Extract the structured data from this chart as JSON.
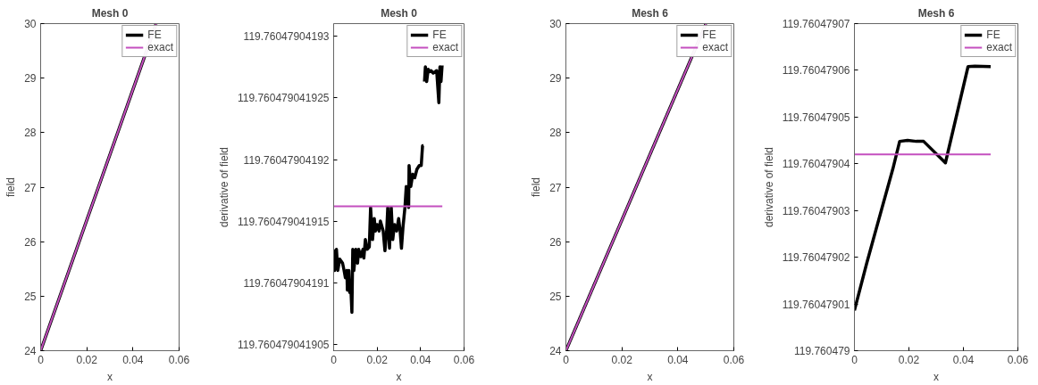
{
  "chart_data": [
    {
      "type": "line",
      "title": "Mesh 0",
      "xlabel": "x",
      "ylabel": "field",
      "xlim": [
        0,
        0.06
      ],
      "xticks": [
        0,
        0.02,
        0.04,
        0.06
      ],
      "ylim": [
        24,
        30
      ],
      "yticks": [
        24,
        25,
        26,
        27,
        28,
        29,
        30
      ],
      "grid": false,
      "legend": "top right",
      "series": [
        {
          "name": "FE",
          "color": "#000000",
          "x": [
            0,
            0.05
          ],
          "values": [
            24,
            29.99
          ]
        },
        {
          "name": "exact",
          "color": "#c44fbf",
          "x": [
            0,
            0.05
          ],
          "values": [
            24,
            29.99
          ]
        }
      ]
    },
    {
      "type": "line",
      "title": "Mesh 0",
      "xlabel": "x",
      "ylabel": "derivative of field",
      "xlim": [
        0,
        0.06
      ],
      "xticks": [
        0,
        0.02,
        0.04,
        0.06
      ],
      "ylim": [
        119.7604790419045,
        119.760479041931
      ],
      "yticks": [
        119.760479041905,
        119.76047904191,
        119.760479041915,
        119.76047904192,
        119.760479041925,
        119.76047904193
      ],
      "grid": false,
      "legend": "top right",
      "series": [
        {
          "name": "FE",
          "color": "#000000",
          "x": [
            0,
            0.0004,
            0.0013,
            0.0019,
            0.0028,
            0.0041,
            0.0048,
            0.0054,
            0.0061,
            0.0063,
            0.007,
            0.0074,
            0.008,
            0.0084,
            0.0088,
            0.0093,
            0.0102,
            0.011,
            0.0115,
            0.0125,
            0.0135,
            0.0139,
            0.0146,
            0.0154,
            0.0164,
            0.017,
            0.0179,
            0.0187,
            0.0192,
            0.02,
            0.0209,
            0.0215,
            0.0228,
            0.0236,
            0.0244,
            0.0249,
            0.0257,
            0.0265,
            0.0272,
            0.028,
            0.029,
            0.0299,
            0.0306,
            0.0312,
            0.0319,
            0.0328,
            0.0334,
            0.0345,
            0.0347,
            0.0355,
            0.0364,
            0.0373,
            0.0383,
            0.0394,
            0.0403,
            0.0409,
            0.0413,
            0.0415,
            0.0418,
            0.0422,
            0.0428,
            0.0435,
            0.0441,
            0.0448,
            0.0458,
            0.0467,
            0.0474,
            0.0477,
            0.0484,
            0.0489,
            0.0494,
            0.0499
          ],
          "values": [
            119.7604790419127,
            119.760479041911,
            119.7604790419127,
            119.760479041911,
            119.7604790419119,
            119.7604790419116,
            119.760479041911,
            119.7604790419104,
            119.760479041911,
            119.7604790419094,
            119.760479041911,
            119.7604790419092,
            119.7604790419092,
            119.7604790419076,
            119.7604790419127,
            119.760479041911,
            119.7604790419127,
            119.7604790419116,
            119.7604790419127,
            119.7604790419121,
            119.7604790419127,
            119.760479041912,
            119.7604790419135,
            119.7604790419127,
            119.7604790419129,
            119.7604790419161,
            119.7604790419135,
            119.7604790419152,
            119.7604790419142,
            119.7604790419147,
            119.7604790419142,
            119.760479041915,
            119.7604790419142,
            119.7604790419126,
            119.7604790419142,
            119.7604790419161,
            119.7604790419128,
            119.7604790419161,
            119.7604790419135,
            119.7604790419147,
            119.7604790419142,
            119.7604790419152,
            119.7604790419142,
            119.7604790419128,
            119.7604790419145,
            119.7604790419161,
            119.7604790419178,
            119.7604790419161,
            119.7604790419195,
            119.7604790419178,
            119.7604790419188,
            119.7604790419185,
            119.7604790419192,
            119.7604790419195,
            119.7604790419195,
            119.7604790419211,
            119.7604790419211,
            null,
            119.7604790419263,
            119.7604790419275,
            119.7604790419263,
            119.7604790419273,
            119.7604790419271,
            119.7604790419272,
            119.760479041927,
            119.7604790419271,
            119.7604790419272,
            119.7604790419264,
            119.7604790419246,
            119.7604790419275,
            119.7604790419263,
            119.7604790419276
          ]
        },
        {
          "name": "exact",
          "color": "#c44fbf",
          "x": [
            0,
            0.05
          ],
          "values": [
            119.7604790419162,
            119.7604790419162
          ]
        }
      ]
    },
    {
      "type": "line",
      "title": "Mesh 6",
      "xlabel": "x",
      "ylabel": "field",
      "xlim": [
        0,
        0.06
      ],
      "xticks": [
        0,
        0.02,
        0.04,
        0.06
      ],
      "ylim": [
        24,
        30
      ],
      "yticks": [
        24,
        25,
        26,
        27,
        28,
        29,
        30
      ],
      "grid": false,
      "legend": "top right",
      "series": [
        {
          "name": "FE",
          "color": "#000000",
          "x": [
            0,
            0.05
          ],
          "values": [
            24,
            29.99
          ]
        },
        {
          "name": "exact",
          "color": "#c44fbf",
          "x": [
            0,
            0.05
          ],
          "values": [
            24,
            29.99
          ]
        }
      ]
    },
    {
      "type": "line",
      "title": "Mesh 6",
      "xlabel": "x",
      "ylabel": "derivative of field",
      "xlim": [
        0,
        0.06
      ],
      "xticks": [
        0,
        0.02,
        0.04,
        0.06
      ],
      "ylim": [
        119.760479,
        119.76047907
      ],
      "yticks": [
        119.760479,
        119.76047901,
        119.76047902,
        119.76047903,
        119.76047904,
        119.76047905,
        119.76047906,
        119.76047907
      ],
      "grid": false,
      "legend": "top right",
      "series": [
        {
          "name": "FE",
          "color": "#000000",
          "x": [
            0,
            0.0045,
            0.0099,
            0.0141,
            0.0166,
            0.0195,
            0.0227,
            0.0254,
            0.0334,
            0.0417,
            0.0442,
            0.05
          ],
          "values": [
            119.7604790086,
            119.7604790187,
            119.7604790301,
            119.7604790389,
            119.7604790448,
            119.760479045,
            119.7604790448,
            119.7604790448,
            119.7604790402,
            119.7604790608,
            119.7604790609,
            119.7604790608
          ]
        },
        {
          "name": "exact",
          "color": "#c44fbf",
          "x": [
            0,
            0.05
          ],
          "values": [
            119.760479042,
            119.760479042
          ]
        }
      ]
    }
  ]
}
